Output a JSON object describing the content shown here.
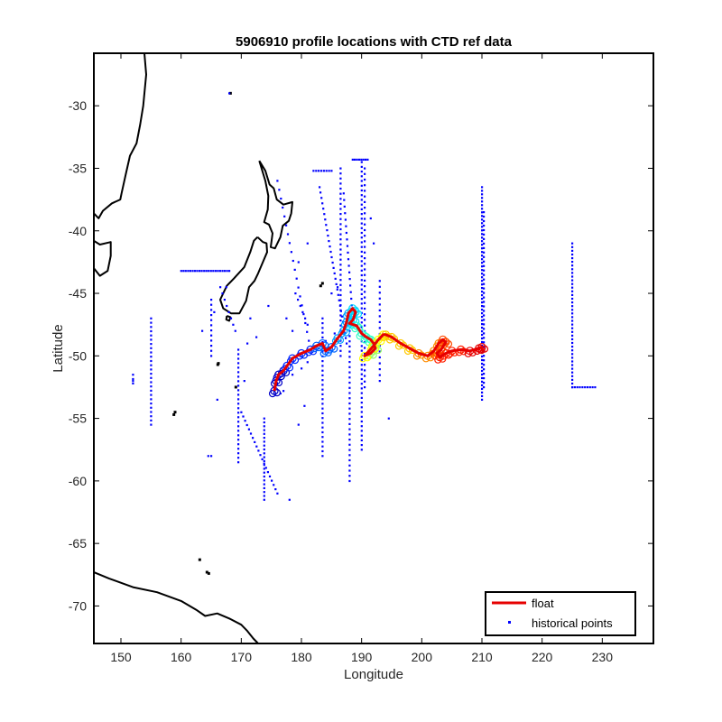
{
  "chart_data": {
    "type": "scatter",
    "title": "5906910 profile locations with CTD ref data",
    "xlabel": "Longitude",
    "ylabel": "Latitude",
    "xlim": [
      145.5,
      238.5
    ],
    "ylim": [
      -73,
      -25.8
    ],
    "xticks": [
      150,
      160,
      170,
      180,
      190,
      200,
      210,
      220,
      230
    ],
    "yticks": [
      -30,
      -35,
      -40,
      -45,
      -50,
      -55,
      -60,
      -65,
      -70
    ],
    "grid": false,
    "legend_position": "bottom-right",
    "legend": [
      {
        "label": "float",
        "color": "#e60000",
        "marker": "line"
      },
      {
        "label": "historical points",
        "color": "#0000ff",
        "marker": "dot"
      }
    ],
    "coastlines": [
      [
        [
          153.9,
          -25.8
        ],
        [
          154.2,
          -27.5
        ],
        [
          153.7,
          -30
        ],
        [
          153.2,
          -31.5
        ],
        [
          152.6,
          -33
        ],
        [
          151.5,
          -34
        ],
        [
          150.8,
          -35.5
        ],
        [
          150.1,
          -37
        ],
        [
          149.9,
          -37.5
        ],
        [
          148.5,
          -37.8
        ],
        [
          147,
          -38.4
        ],
        [
          146.3,
          -39
        ],
        [
          145.5,
          -38.6
        ]
      ],
      [
        [
          145.5,
          -40.8
        ],
        [
          146.5,
          -41.1
        ],
        [
          148.3,
          -40.9
        ],
        [
          148.3,
          -42
        ],
        [
          147.8,
          -43.2
        ],
        [
          146.5,
          -43.6
        ],
        [
          145.5,
          -43.0
        ]
      ],
      [
        [
          173.0,
          -34.4
        ],
        [
          174.0,
          -35.2
        ],
        [
          174.7,
          -36.3
        ],
        [
          175.4,
          -36.6
        ],
        [
          175.9,
          -37.5
        ],
        [
          177.0,
          -37.9
        ],
        [
          178.5,
          -37.7
        ],
        [
          178.3,
          -38.6
        ],
        [
          177.9,
          -39.2
        ],
        [
          176.9,
          -39.6
        ],
        [
          176.5,
          -40.5
        ],
        [
          175.6,
          -41.4
        ],
        [
          174.9,
          -41.3
        ],
        [
          175.2,
          -40.2
        ],
        [
          174.6,
          -39.5
        ],
        [
          173.8,
          -39.3
        ],
        [
          174.4,
          -38.3
        ],
        [
          174.5,
          -37.2
        ],
        [
          174.0,
          -36.0
        ],
        [
          173.0,
          -34.4
        ]
      ],
      [
        [
          172.7,
          -40.5
        ],
        [
          173.6,
          -40.9
        ],
        [
          174.2,
          -41.0
        ],
        [
          174.3,
          -41.7
        ],
        [
          173.6,
          -42.5
        ],
        [
          172.8,
          -43.4
        ],
        [
          172.2,
          -44.0
        ],
        [
          171.3,
          -44.5
        ],
        [
          170.8,
          -45.6
        ],
        [
          169.7,
          -46.6
        ],
        [
          168.3,
          -46.6
        ],
        [
          167.0,
          -46.2
        ],
        [
          166.5,
          -45.5
        ],
        [
          167.6,
          -44.4
        ],
        [
          168.8,
          -43.8
        ],
        [
          170.5,
          -42.9
        ],
        [
          171.5,
          -41.7
        ],
        [
          172.1,
          -40.8
        ],
        [
          172.7,
          -40.5
        ]
      ],
      [
        [
          167.6,
          -46.8
        ],
        [
          168.2,
          -46.9
        ],
        [
          168.0,
          -47.2
        ],
        [
          167.5,
          -47.1
        ],
        [
          167.6,
          -46.8
        ]
      ],
      [
        [
          145.5,
          -67.3
        ],
        [
          148,
          -67.8
        ],
        [
          152,
          -68.5
        ],
        [
          156,
          -68.9
        ],
        [
          160,
          -69.6
        ],
        [
          162.5,
          -70.3
        ],
        [
          164,
          -70.8
        ],
        [
          166,
          -70.6
        ],
        [
          168,
          -71.0
        ],
        [
          170,
          -71.5
        ],
        [
          171,
          -72.0
        ],
        [
          172,
          -72.6
        ],
        [
          172.8,
          -73.0
        ]
      ]
    ],
    "islands": [
      [
        168.2,
        -29.0
      ],
      [
        183.2,
        -44.4
      ],
      [
        183.5,
        -44.2
      ],
      [
        166.1,
        -50.7
      ],
      [
        166.2,
        -50.6
      ],
      [
        169.1,
        -52.5
      ],
      [
        159.0,
        -54.5
      ],
      [
        163.1,
        -66.3
      ],
      [
        164.3,
        -67.3
      ],
      [
        164.6,
        -67.4
      ],
      [
        158.8,
        -54.7
      ]
    ],
    "historical": {
      "color": "#0000ff",
      "lines": [
        {
          "lon": 210.0,
          "lat": [
            -36.5,
            -53.5
          ],
          "count": 60
        },
        {
          "lon": 210.3,
          "lat": [
            -38.5,
            -52.5
          ],
          "count": 40
        },
        {
          "lon": 225.0,
          "lat": [
            -41.0,
            -52.5
          ],
          "count": 40
        },
        {
          "lon": 190.0,
          "lat": [
            -34.5,
            -57.5
          ],
          "count": 62
        },
        {
          "lon": 190.5,
          "lat": [
            -35.0,
            -52.5
          ],
          "count": 40
        },
        {
          "lon": 155.0,
          "lat": [
            -47.0,
            -55.5
          ],
          "count": 26
        },
        {
          "lon": 165.0,
          "lat": [
            -45.5,
            -50.0
          ],
          "count": 12
        },
        {
          "lon": 173.8,
          "lat": [
            -55.0,
            -61.5
          ],
          "count": 22
        },
        {
          "lon": 169.5,
          "lat": [
            -49.5,
            -58.5
          ],
          "count": 26
        },
        {
          "lon": 186.5,
          "lat": [
            -35.0,
            -50.0
          ],
          "count": 38
        },
        {
          "lon": 183.5,
          "lat": [
            -47.0,
            -58.0
          ],
          "count": 30
        },
        {
          "lon": 188.0,
          "lat": [
            -48.0,
            -60.0
          ],
          "count": 30
        },
        {
          "lon": 193.0,
          "lat": [
            -44.0,
            -52.0
          ],
          "count": 18
        },
        {
          "lon": 152.0,
          "lat": [
            -51.5,
            -52.2
          ],
          "count": 3
        }
      ],
      "segments": [
        {
          "from": [
            160.0,
            -43.2
          ],
          "to": [
            168.0,
            -43.2
          ],
          "count": 22
        },
        {
          "from": [
            182.0,
            -35.2
          ],
          "to": [
            185.0,
            -35.2
          ],
          "count": 8
        },
        {
          "from": [
            188.5,
            -34.3
          ],
          "to": [
            191.0,
            -34.3
          ],
          "count": 8
        },
        {
          "from": [
            225.0,
            -52.5
          ],
          "to": [
            228.8,
            -52.5
          ],
          "count": 10
        },
        {
          "from": [
            183.0,
            -36.5
          ],
          "to": [
            187.5,
            -49.0
          ],
          "count": 30
        },
        {
          "from": [
            170.0,
            -54.5
          ],
          "to": [
            176.0,
            -61.0
          ],
          "count": 20
        },
        {
          "from": [
            187.0,
            -37.0
          ],
          "to": [
            188.5,
            -47.0
          ],
          "count": 20
        },
        {
          "from": [
            166.5,
            -44.5
          ],
          "to": [
            169.0,
            -48.0
          ],
          "count": 8
        },
        {
          "from": [
            179.0,
            -45.0
          ],
          "to": [
            181.0,
            -47.5
          ],
          "count": 6
        },
        {
          "from": [
            176.0,
            -36.0
          ],
          "to": [
            181.5,
            -49.5
          ],
          "count": 20
        }
      ],
      "points": [
        [
          168.0,
          -29.0
        ],
        [
          152.0,
          -52.0
        ],
        [
          164.5,
          -58.0
        ],
        [
          165.0,
          -58.0
        ],
        [
          178.0,
          -61.5
        ],
        [
          194.5,
          -55.0
        ],
        [
          175.5,
          -52.5
        ],
        [
          176.5,
          -53.0
        ],
        [
          177.0,
          -52.8
        ],
        [
          178.5,
          -51.5
        ],
        [
          180.0,
          -51.0
        ],
        [
          181.0,
          -50.5
        ],
        [
          182.5,
          -49.5
        ],
        [
          184.0,
          -48.8
        ],
        [
          185.5,
          -48.2
        ],
        [
          179.5,
          -55.5
        ],
        [
          180.5,
          -54.0
        ],
        [
          170.5,
          -52.0
        ],
        [
          163.5,
          -48.0
        ],
        [
          165.5,
          -46.5
        ],
        [
          167.5,
          -44.5
        ],
        [
          171.5,
          -47.0
        ],
        [
          172.5,
          -48.5
        ],
        [
          174.5,
          -46.0
        ],
        [
          177.5,
          -47.0
        ],
        [
          178.5,
          -48.0
        ],
        [
          185.0,
          -45.0
        ],
        [
          186.0,
          -44.5
        ],
        [
          179.5,
          -42.5
        ],
        [
          181.0,
          -41.0
        ],
        [
          171.0,
          -49.0
        ],
        [
          166.0,
          -53.5
        ],
        [
          192.0,
          -41.0
        ],
        [
          191.5,
          -39.0
        ]
      ]
    },
    "float_track": {
      "color": "#e60000",
      "lon": [
        175.5,
        175.8,
        176.2,
        177.0,
        177.6,
        178.5,
        180.0,
        181.5,
        182.5,
        183.5,
        184.0,
        185.0,
        186.0,
        187.0,
        187.5,
        187.8,
        188.5,
        189.0,
        188.6,
        188.0,
        189.2,
        190.0,
        190.8,
        191.5,
        192.0,
        192.3,
        191.5,
        190.5,
        191.8,
        192.8,
        193.6,
        194.0,
        195.0,
        196.5,
        198.0,
        199.5,
        201.0,
        202.0,
        202.8,
        203.5,
        204.0,
        203.2,
        202.5,
        203.0,
        204.0,
        205.0,
        206.5,
        208.0,
        209.5,
        210.0
      ],
      "lat": [
        -52.8,
        -52.0,
        -51.5,
        -51.2,
        -50.8,
        -50.2,
        -49.8,
        -49.5,
        -49.2,
        -49.0,
        -49.6,
        -49.3,
        -48.6,
        -48.0,
        -47.3,
        -46.6,
        -46.2,
        -46.5,
        -47.1,
        -47.4,
        -47.6,
        -48.2,
        -48.5,
        -48.7,
        -49.0,
        -49.4,
        -49.8,
        -50.0,
        -49.3,
        -48.7,
        -48.3,
        -48.3,
        -48.5,
        -49.0,
        -49.4,
        -49.8,
        -50.0,
        -49.6,
        -49.0,
        -48.7,
        -48.9,
        -49.5,
        -49.8,
        -50.1,
        -49.8,
        -49.6,
        -49.5,
        -49.6,
        -49.4,
        -49.3
      ],
      "profile_colors": [
        "#0000c8",
        "#0028ff",
        "#0064ff",
        "#00a0ff",
        "#00dcff",
        "#32ffc8",
        "#96ff64",
        "#ffff00",
        "#ffc800",
        "#ff8c00",
        "#ff4b00",
        "#ff1e00",
        "#e60000"
      ]
    }
  }
}
